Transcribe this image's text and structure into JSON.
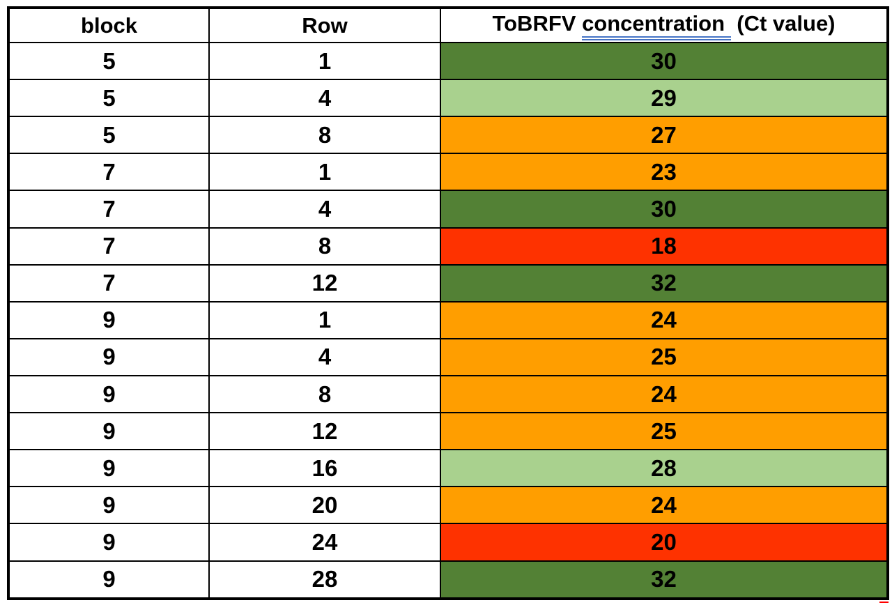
{
  "header": {
    "col1": "block",
    "col2": "Row",
    "col3_prefix": "ToBRFV ",
    "col3_underlined": "concentration ",
    "col3_suffix": " (Ct value)"
  },
  "colors": {
    "underline_blue": "#4472C4",
    "underline_end_red": "#FF0000",
    "border_black": "#000000",
    "text_black": "#000000",
    "background_white": "#FFFFFF"
  },
  "chart_data": {
    "type": "table",
    "columns": [
      "block",
      "Row",
      "ToBRFV concentration  (Ct value)"
    ],
    "color_map": {
      "dark_green": "#538135",
      "light_green": "#A9D18E",
      "orange": "#FF9E00",
      "red": "#FE3200"
    },
    "rows": [
      {
        "block": "5",
        "row": "1",
        "ct": "30",
        "ct_color": "dark_green"
      },
      {
        "block": "5",
        "row": "4",
        "ct": "29",
        "ct_color": "light_green"
      },
      {
        "block": "5",
        "row": "8",
        "ct": "27",
        "ct_color": "orange"
      },
      {
        "block": "7",
        "row": "1",
        "ct": "23",
        "ct_color": "orange"
      },
      {
        "block": "7",
        "row": "4",
        "ct": "30",
        "ct_color": "dark_green"
      },
      {
        "block": "7",
        "row": "8",
        "ct": "18",
        "ct_color": "red"
      },
      {
        "block": "7",
        "row": "12",
        "ct": "32",
        "ct_color": "dark_green"
      },
      {
        "block": "9",
        "row": "1",
        "ct": "24",
        "ct_color": "orange"
      },
      {
        "block": "9",
        "row": "4",
        "ct": "25",
        "ct_color": "orange"
      },
      {
        "block": "9",
        "row": "8",
        "ct": "24",
        "ct_color": "orange"
      },
      {
        "block": "9",
        "row": "12",
        "ct": "25",
        "ct_color": "orange"
      },
      {
        "block": "9",
        "row": "16",
        "ct": "28",
        "ct_color": "light_green"
      },
      {
        "block": "9",
        "row": "20",
        "ct": "24",
        "ct_color": "orange"
      },
      {
        "block": "9",
        "row": "24",
        "ct": "20",
        "ct_color": "red"
      },
      {
        "block": "9",
        "row": "28",
        "ct": "32",
        "ct_color": "dark_green"
      }
    ]
  }
}
